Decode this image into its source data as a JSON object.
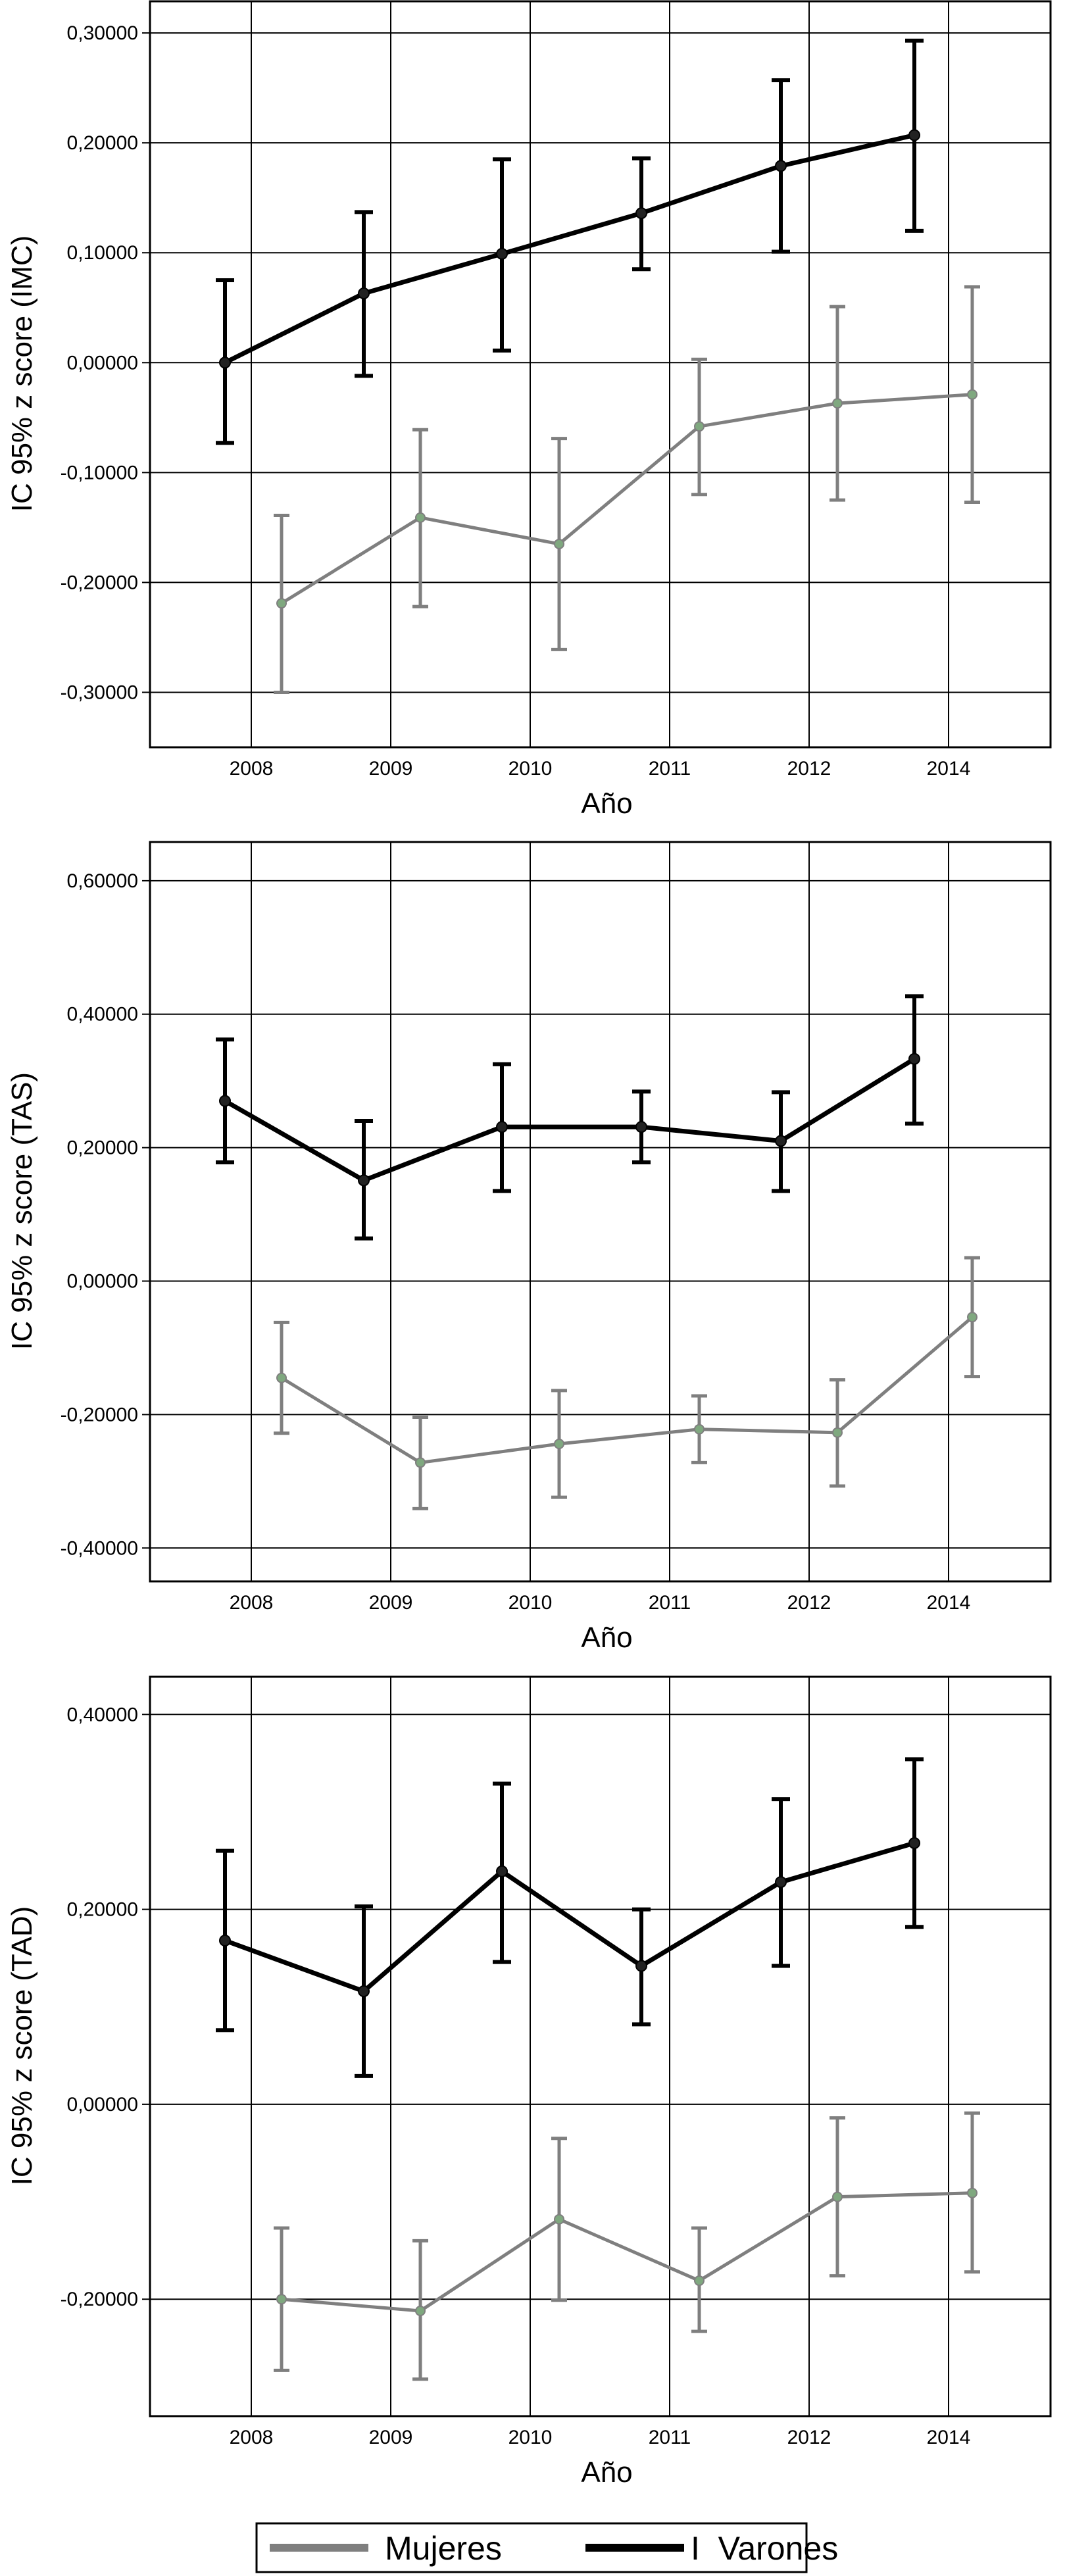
{
  "chart_data": [
    {
      "type": "line",
      "ylabel": "IC 95% z score (IMC)",
      "xlabel": "Año",
      "categories": [
        "2008",
        "2009",
        "2010",
        "2011",
        "2012",
        "2014"
      ],
      "ylim": [
        -0.35,
        0.33
      ],
      "yticks": [
        "0,30000",
        "0,20000",
        "0,10000",
        "0,00000",
        "-0,10000",
        "-0,20000",
        "-0,30000"
      ],
      "ytick_values": [
        0.3,
        0.2,
        0.1,
        0.0,
        -0.1,
        -0.2,
        -0.3
      ],
      "grid": true,
      "error_bars": "95% CI",
      "series": [
        {
          "name": "Varones",
          "color": "#000000",
          "values": [
            0.0,
            0.063,
            0.099,
            0.136,
            0.179,
            0.207
          ],
          "lower": [
            -0.073,
            -0.012,
            0.011,
            0.085,
            0.101,
            0.12
          ],
          "upper": [
            0.075,
            0.137,
            0.185,
            0.186,
            0.257,
            0.293
          ]
        },
        {
          "name": "Mujeres",
          "color": "#7f7f7f",
          "values": [
            -0.219,
            -0.141,
            -0.165,
            -0.058,
            -0.037,
            -0.029
          ],
          "lower": [
            -0.3,
            -0.222,
            -0.261,
            -0.12,
            -0.125,
            -0.127
          ],
          "upper": [
            -0.139,
            -0.061,
            -0.069,
            0.003,
            0.051,
            0.069
          ]
        }
      ]
    },
    {
      "type": "line",
      "ylabel": "IC 95% z score (TAS)",
      "xlabel": "Año",
      "categories": [
        "2008",
        "2009",
        "2010",
        "2011",
        "2012",
        "2014"
      ],
      "ylim": [
        -0.45,
        0.66
      ],
      "yticks": [
        "0,60000",
        "0,40000",
        "0,20000",
        "0,00000",
        "-0,20000",
        "-0,40000"
      ],
      "ytick_values": [
        0.6,
        0.4,
        0.2,
        0.0,
        -0.2,
        -0.4
      ],
      "grid": true,
      "error_bars": "95% CI",
      "series": [
        {
          "name": "Varones",
          "color": "#000000",
          "values": [
            0.27,
            0.151,
            0.231,
            0.231,
            0.21,
            0.333
          ],
          "lower": [
            0.178,
            0.064,
            0.135,
            0.178,
            0.135,
            0.236
          ],
          "upper": [
            0.362,
            0.24,
            0.325,
            0.284,
            0.283,
            0.427
          ]
        },
        {
          "name": "Mujeres",
          "color": "#7f7f7f",
          "values": [
            -0.145,
            -0.272,
            -0.244,
            -0.222,
            -0.227,
            -0.054
          ],
          "lower": [
            -0.228,
            -0.341,
            -0.324,
            -0.272,
            -0.307,
            -0.143
          ],
          "upper": [
            -0.062,
            -0.204,
            -0.164,
            -0.172,
            -0.148,
            0.035
          ]
        }
      ]
    },
    {
      "type": "line",
      "ylabel": "IC 95% z score  (TAD)",
      "xlabel": "Año",
      "categories": [
        "2008",
        "2009",
        "2010",
        "2011",
        "2012",
        "2014"
      ],
      "ylim": [
        -0.32,
        0.44
      ],
      "yticks": [
        "0,40000",
        "0,20000",
        "0,00000",
        "-0,20000"
      ],
      "ytick_values": [
        0.4,
        0.2,
        0.0,
        -0.2
      ],
      "grid": true,
      "error_bars": "95% CI",
      "series": [
        {
          "name": "Varones",
          "color": "#000000",
          "values": [
            0.168,
            0.116,
            0.239,
            0.142,
            0.228,
            0.268
          ],
          "lower": [
            0.076,
            0.029,
            0.146,
            0.082,
            0.142,
            0.182
          ],
          "upper": [
            0.26,
            0.203,
            0.329,
            0.2,
            0.313,
            0.354
          ]
        },
        {
          "name": "Mujeres",
          "color": "#7f7f7f",
          "values": [
            -0.2,
            -0.212,
            -0.118,
            -0.181,
            -0.095,
            -0.091
          ],
          "lower": [
            -0.273,
            -0.282,
            -0.201,
            -0.233,
            -0.176,
            -0.172
          ],
          "upper": [
            -0.127,
            -0.14,
            -0.035,
            -0.127,
            -0.014,
            -0.009
          ]
        }
      ]
    }
  ],
  "legend": {
    "placement": "bottom",
    "items": [
      {
        "label": "Mujeres",
        "color": "#7f7f7f"
      },
      {
        "label": "I  Varones",
        "color": "#000000"
      }
    ]
  }
}
